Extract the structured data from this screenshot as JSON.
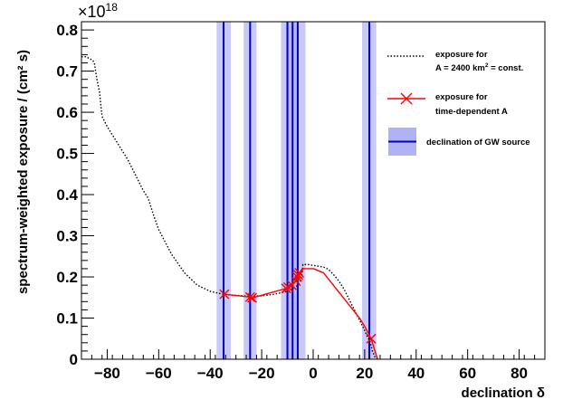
{
  "chart_data": {
    "type": "line",
    "xlabel": "declination δ",
    "ylabel": "spectrum-weighted exposure / (cm² s)",
    "y_multiplier": "×10",
    "y_multiplier_exp": "18",
    "xlim": [
      -90,
      90
    ],
    "ylim": [
      0,
      0.82
    ],
    "x_ticks": [
      -80,
      -60,
      -40,
      -20,
      0,
      20,
      40,
      60,
      80
    ],
    "x_tick_labels": [
      "−80",
      "−60",
      "−40",
      "−20",
      "0",
      "20",
      "40",
      "60",
      "80"
    ],
    "y_ticks": [
      0,
      0.1,
      0.2,
      0.3,
      0.4,
      0.5,
      0.6,
      0.7,
      0.8
    ],
    "y_tick_labels": [
      "0",
      "0.1",
      "0.2",
      "0.3",
      "0.4",
      "0.5",
      "0.6",
      "0.7",
      "0.8"
    ],
    "grid": false,
    "legend_position": "top-right",
    "legend": {
      "const_line1": "exposure for",
      "const_line2_a": "A = 2400 km",
      "const_line2_sup": "2",
      "const_line2_b": " = const.",
      "td_line1": "exposure for",
      "td_line2": "time-dependent A",
      "gw_label": "declination of GW source"
    },
    "colors": {
      "const": "#000000",
      "td": "#ff0000",
      "band": "#b0b2f5",
      "gw": "#0000cc"
    },
    "series": [
      {
        "style": "dotted",
        "x": [
          -90,
          -88,
          -87,
          -86,
          -85.5,
          -85,
          -84.5,
          -84,
          -83,
          -82,
          -80,
          -78,
          -76,
          -74,
          -72,
          -70,
          -68,
          -66,
          -64,
          -62,
          -60,
          -55,
          -50,
          -45,
          -40,
          -35,
          -30,
          -25,
          -20,
          -15,
          -10,
          -8,
          -6,
          -5,
          -4.5,
          -4.2,
          -4,
          -2,
          0,
          2,
          4,
          6,
          8,
          10,
          12,
          14,
          16,
          18,
          20,
          21,
          22,
          23,
          24,
          25
        ],
        "y": [
          0.735,
          0.735,
          0.73,
          0.728,
          0.725,
          0.72,
          0.7,
          0.68,
          0.65,
          0.59,
          0.565,
          0.545,
          0.525,
          0.505,
          0.485,
          0.46,
          0.435,
          0.41,
          0.39,
          0.35,
          0.315,
          0.255,
          0.21,
          0.18,
          0.165,
          0.158,
          0.155,
          0.153,
          0.154,
          0.158,
          0.165,
          0.17,
          0.18,
          0.19,
          0.2,
          0.215,
          0.23,
          0.23,
          0.228,
          0.226,
          0.224,
          0.218,
          0.205,
          0.19,
          0.17,
          0.145,
          0.12,
          0.095,
          0.07,
          0.055,
          0.045,
          0.02,
          0.005,
          0
        ]
      },
      {
        "style": "solid",
        "points_shown": true,
        "x": [
          -34.5,
          -24.5,
          -23.7,
          -10.5,
          -9.7,
          -8.3,
          -6.7,
          -6.2,
          -5.8,
          -5.4,
          -4.2,
          0,
          1,
          2,
          4,
          18,
          20,
          22.5,
          25
        ],
        "y": [
          0.158,
          0.151,
          0.149,
          0.172,
          0.175,
          0.18,
          0.19,
          0.2,
          0.205,
          0.21,
          0.22,
          0.22,
          0.218,
          0.215,
          0.21,
          0.1,
          0.08,
          0.05,
          0
        ]
      }
    ],
    "markers_x": [
      -34.5,
      -24.5,
      -23.7,
      -10.5,
      -9.7,
      -8.3,
      -6.7,
      -6.2,
      -5.8,
      -5.4,
      22.5
    ],
    "markers_y": [
      0.158,
      0.151,
      0.149,
      0.172,
      0.175,
      0.18,
      0.19,
      0.2,
      0.205,
      0.21,
      0.05
    ],
    "gw_sources": [
      {
        "center": -34.8,
        "low": -37.5,
        "high": -32.0
      },
      {
        "center": -24.5,
        "low": -27.0,
        "high": -22.0
      },
      {
        "center": -10.0,
        "low": -12.5,
        "high": -7.5
      },
      {
        "center": -8.0,
        "low": -10.5,
        "high": -5.5
      },
      {
        "center": -6.0,
        "low": -8.5,
        "high": -3.0
      },
      {
        "center": 21.8,
        "low": 19.0,
        "high": 24.5
      }
    ]
  }
}
